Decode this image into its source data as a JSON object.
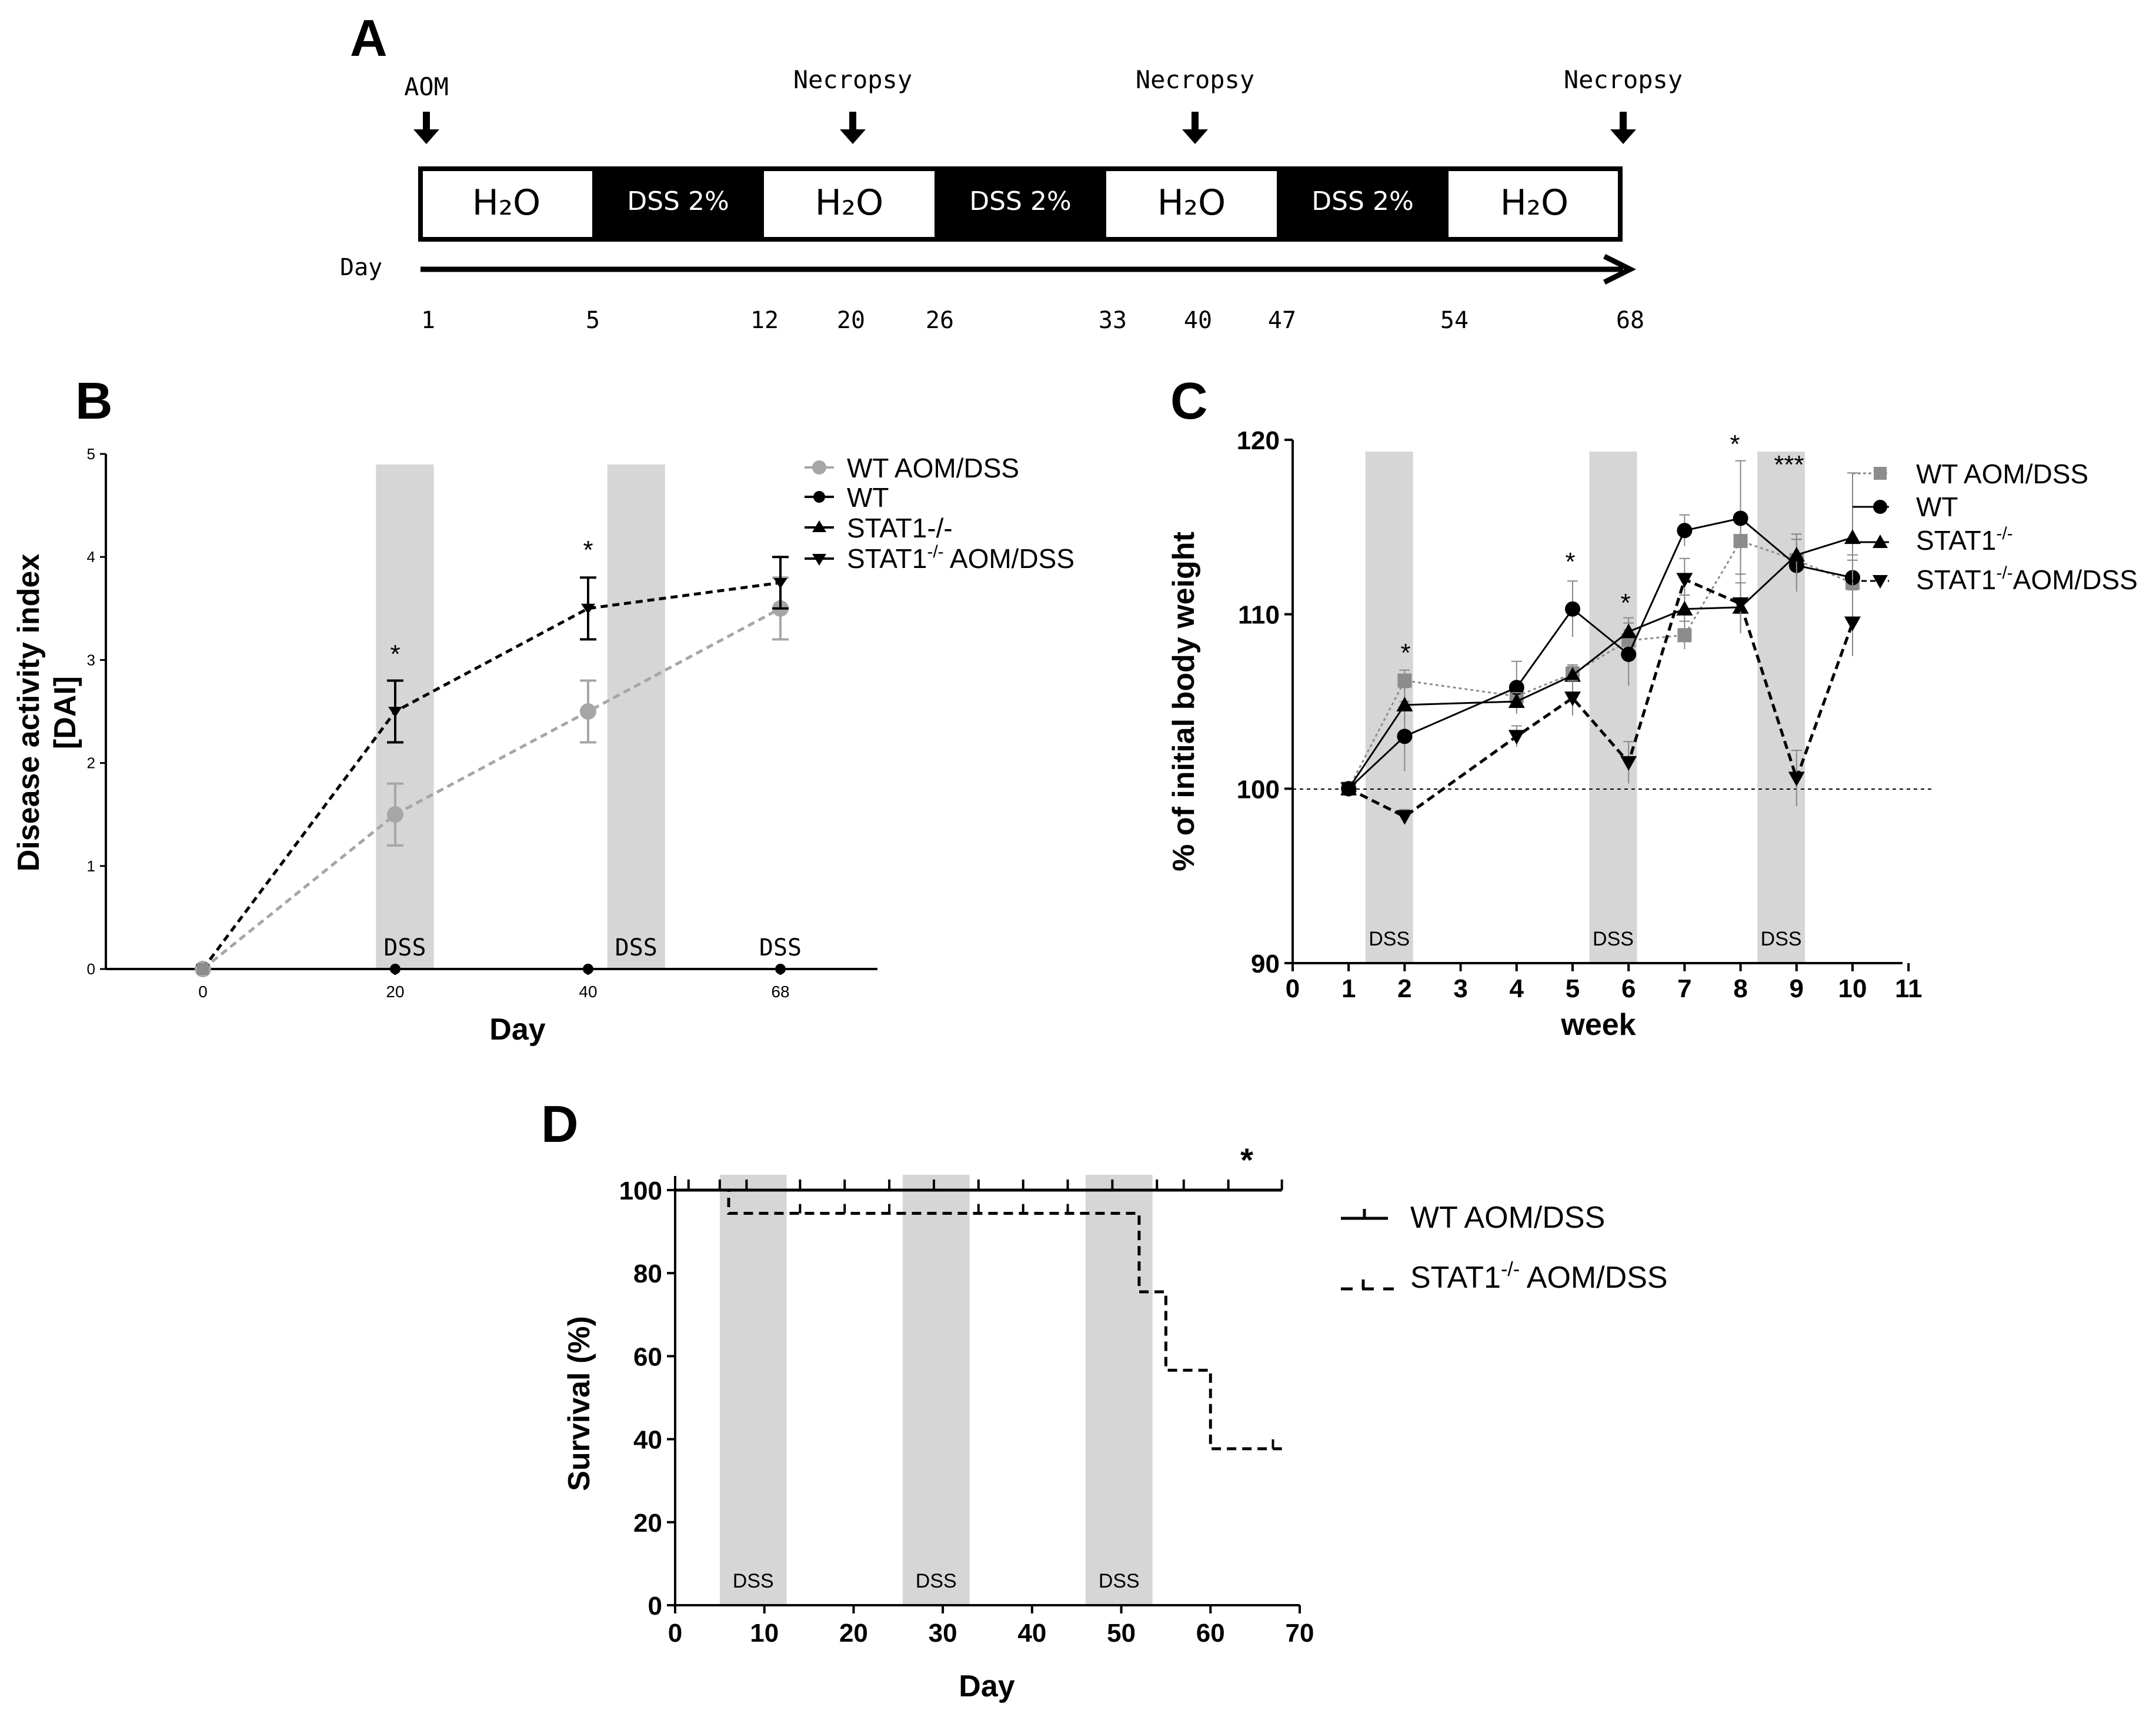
{
  "chart_data": [
    {
      "panel": "A",
      "type": "timeline",
      "panel_letter": "A",
      "start_label": "AOM",
      "necropsy_label": "Necropsy",
      "axis_label": "Day",
      "segments": [
        "H₂O",
        "DSS 2%",
        "H₂O",
        "DSS 2%",
        "H₂O",
        "DSS 2%",
        "H₂O"
      ],
      "day_ticks": [
        "1",
        "5",
        "12",
        "20",
        "26",
        "33",
        "40",
        "47",
        "54",
        "68"
      ]
    },
    {
      "panel": "B",
      "type": "line",
      "panel_letter": "B",
      "xlabel": "Day",
      "ylabel_line1": "Disease activity index",
      "ylabel_line2": "[DAI]",
      "x_ticks": [
        "0",
        "20",
        "40",
        "68"
      ],
      "y_ticks": [
        "0",
        "1",
        "2",
        "3",
        "4",
        "5"
      ],
      "ylim": [
        0,
        5
      ],
      "shade_label": "DSS",
      "dss_periods": [
        [
          0.9,
          1.2
        ],
        [
          2.1,
          2.4
        ],
        [
          3.1,
          3.4
        ]
      ],
      "series": [
        {
          "name": "WT AOM/DSS",
          "color": "#a6a6a6",
          "x": [
            0,
            1,
            2,
            3
          ],
          "values": [
            0,
            1.5,
            2.5,
            3.5
          ],
          "err": [
            0,
            0.3,
            0.3,
            0.3
          ]
        },
        {
          "name": "WT",
          "color": "#000000",
          "x": [
            0,
            1,
            2,
            3
          ],
          "values": [
            0,
            0,
            0,
            0
          ]
        },
        {
          "name": "STAT1-/-",
          "color": "#000000",
          "x": [
            0,
            1,
            2,
            3
          ],
          "values": [
            0,
            0,
            0,
            0
          ]
        },
        {
          "name": "STAT1-/- AOM/DSS",
          "color": "#000000",
          "x": [
            0,
            1,
            2,
            3
          ],
          "values": [
            0,
            2.5,
            3.5,
            3.75
          ],
          "err": [
            0,
            0.3,
            0.3,
            0.25
          ]
        }
      ],
      "legend_labels": {
        "wt_aom": "WT AOM/DSS",
        "wt": "WT",
        "stat": "STAT1-/-",
        "stat_aom_pre": "STAT1",
        "stat_aom_sup": "-/-",
        "stat_aom_post": " AOM/DSS"
      },
      "significance": [
        "*",
        "*"
      ]
    },
    {
      "panel": "C",
      "type": "line",
      "panel_letter": "C",
      "xlabel": "week",
      "ylabel": "% of initial body weight",
      "x_ticks": [
        "0",
        "1",
        "2",
        "3",
        "4",
        "5",
        "6",
        "7",
        "8",
        "9",
        "10",
        "11"
      ],
      "y_ticks": [
        "90",
        "100",
        "110",
        "120"
      ],
      "ylim": [
        90,
        120
      ],
      "xlim": [
        0,
        11
      ],
      "baseline": 100,
      "shade_label": "DSS",
      "dss_periods": [
        [
          1.3,
          2.15
        ],
        [
          5.3,
          6.15
        ],
        [
          8.3,
          9.15
        ]
      ],
      "series": [
        {
          "name": "WT AOM/DSS",
          "color": "#8c8c8c",
          "x": [
            1,
            2,
            4,
            5,
            6,
            7,
            8,
            9,
            10
          ],
          "values": [
            100,
            106.2,
            105.3,
            106.6,
            108.5,
            108.8,
            114.2,
            113.1,
            111.8
          ]
        },
        {
          "name": "WT",
          "color": "#000000",
          "x": [
            1,
            2,
            4,
            5,
            6,
            7,
            8,
            9,
            10
          ],
          "values": [
            100,
            103,
            105.8,
            110.3,
            107.7,
            114.8,
            115.5,
            112.8,
            112.1
          ]
        },
        {
          "name": "STAT1-/-",
          "color": "#000000",
          "x": [
            1,
            2,
            4,
            5,
            6,
            7,
            8,
            9,
            10
          ],
          "values": [
            100,
            104.8,
            105,
            106.5,
            109,
            110.3,
            110.4,
            113.4,
            114.4
          ]
        },
        {
          "name": "STAT1-/- AOM/DSS",
          "color": "#000000",
          "x": [
            1,
            2,
            4,
            5,
            6,
            7,
            8,
            9,
            10
          ],
          "values": [
            100,
            98.4,
            103,
            105.2,
            101.5,
            112,
            110.6,
            100.6,
            109.5
          ]
        }
      ],
      "legend_labels": {
        "wt_aom": "WT AOM/DSS",
        "wt": "WT",
        "stat_pre": "STAT1",
        "stat_sup": "-/-",
        "stat_aom_pre": "STAT1",
        "stat_aom_sup": "-/-",
        "stat_aom_post": "AOM/DSS"
      },
      "significance": [
        "*",
        "*",
        "*",
        "*",
        "***"
      ]
    },
    {
      "panel": "D",
      "type": "survival",
      "panel_letter": "D",
      "xlabel": "Day",
      "ylabel": "Survival (%)",
      "x_ticks": [
        "0",
        "10",
        "20",
        "30",
        "40",
        "50",
        "60",
        "70"
      ],
      "y_ticks": [
        "0",
        "20",
        "40",
        "60",
        "80",
        "100"
      ],
      "xlim": [
        0,
        70
      ],
      "ylim": [
        0,
        100
      ],
      "shade_label": "DSS",
      "dss_periods": [
        [
          5,
          12.5
        ],
        [
          25.5,
          33
        ],
        [
          46,
          53.5
        ]
      ],
      "series": [
        {
          "name": "WT AOM/DSS",
          "color": "#000000",
          "steps": [
            [
              0,
              100
            ],
            [
              68,
              100
            ]
          ]
        },
        {
          "name": "STAT1-/- AOM/DSS",
          "color": "#000000",
          "steps": [
            [
              0,
              100
            ],
            [
              6,
              100
            ],
            [
              6,
              94.4
            ],
            [
              52,
              94.4
            ],
            [
              52,
              75.5
            ],
            [
              55,
              75.5
            ],
            [
              55,
              56.6
            ],
            [
              60,
              56.6
            ],
            [
              60,
              37.7
            ],
            [
              68,
              37.7
            ]
          ]
        }
      ],
      "legend_labels": {
        "wt_aom": "WT AOM/DSS",
        "stat_aom_pre": "STAT1",
        "stat_aom_sup": "-/-",
        "stat_aom_post": " AOM/DSS"
      },
      "significance": "*"
    }
  ]
}
